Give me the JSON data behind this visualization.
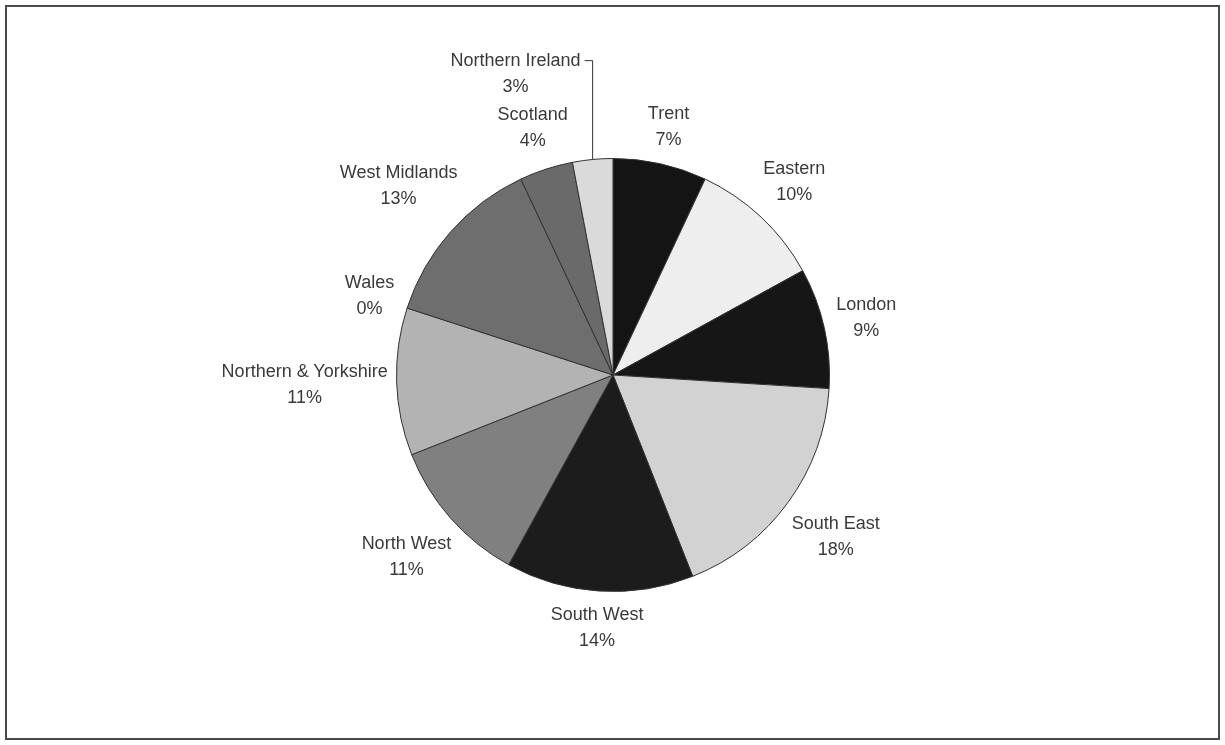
{
  "chart_data": {
    "type": "pie",
    "categories": [
      "Trent",
      "Eastern",
      "London",
      "South East",
      "South West",
      "North West",
      "Northern & Yorkshire",
      "Wales",
      "West Midlands",
      "Scotland",
      "Northern Ireland"
    ],
    "values": [
      7,
      10,
      9,
      18,
      14,
      11,
      11,
      0,
      13,
      4,
      3
    ],
    "colors": [
      "#141414",
      "#eeeeee",
      "#161616",
      "#d2d2d2",
      "#1c1c1c",
      "#808080",
      "#b3b3b3",
      "#909090",
      "#6e6e6e",
      "#6a6a6a",
      "#dadada"
    ],
    "value_labels": [
      "7%",
      "10%",
      "9%",
      "18%",
      "14%",
      "11%",
      "11%",
      "0%",
      "13%",
      "4%",
      "3%"
    ],
    "legend": false
  }
}
